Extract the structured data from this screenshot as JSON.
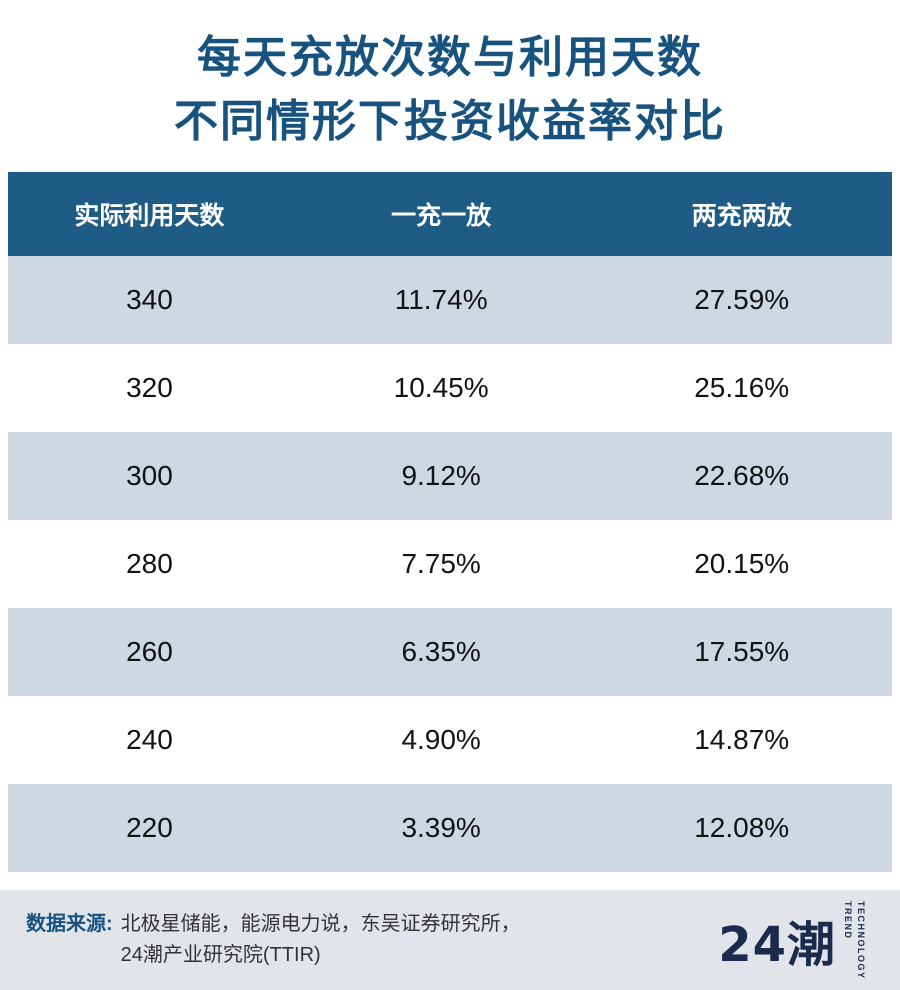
{
  "title": {
    "line1": "每天充放次数与利用天数",
    "line2": "不同情形下投资收益率对比"
  },
  "table": {
    "headers": [
      "实际利用天数",
      "一充一放",
      "两充两放"
    ],
    "rows": [
      [
        "340",
        "11.74%",
        "27.59%"
      ],
      [
        "320",
        "10.45%",
        "25.16%"
      ],
      [
        "300",
        "9.12%",
        "22.68%"
      ],
      [
        "280",
        "7.75%",
        "20.15%"
      ],
      [
        "260",
        "6.35%",
        "17.55%"
      ],
      [
        "240",
        "4.90%",
        "14.87%"
      ],
      [
        "220",
        "3.39%",
        "12.08%"
      ]
    ]
  },
  "footer": {
    "source_label": "数据来源:",
    "source_line1": "北极星储能，能源电力说，东吴证券研究所，",
    "source_line2": "24潮产业研究院(TTIR)",
    "logo_text": "24潮",
    "logo_sub1": "TREND",
    "logo_sub2": "TECHNOLOGY"
  },
  "colors": {
    "title_blue": "#17537E",
    "header_bg": "#1E5C86",
    "row_alt_bg": "#CDD8E2",
    "footer_bg": "#E1E5E9",
    "logo_navy": "#1B2B4D"
  },
  "chart_data": {
    "type": "table",
    "title": "每天充放次数与利用天数 不同情形下投资收益率对比",
    "columns": [
      "实际利用天数",
      "一充一放",
      "两充两放"
    ],
    "units": {
      "一充一放": "%",
      "两充两放": "%"
    },
    "rows": [
      {
        "实际利用天数": 340,
        "一充一放": 11.74,
        "两充两放": 27.59
      },
      {
        "实际利用天数": 320,
        "一充一放": 10.45,
        "两充两放": 25.16
      },
      {
        "实际利用天数": 300,
        "一充一放": 9.12,
        "两充两放": 22.68
      },
      {
        "实际利用天数": 280,
        "一充一放": 7.75,
        "两充两放": 20.15
      },
      {
        "实际利用天数": 260,
        "一充一放": 6.35,
        "两充两放": 17.55
      },
      {
        "实际利用天数": 240,
        "一充一放": 4.9,
        "两充两放": 14.87
      },
      {
        "实际利用天数": 220,
        "一充一放": 3.39,
        "两充两放": 12.08
      }
    ],
    "source": "北极星储能，能源电力说，东吴证券研究所，24潮产业研究院(TTIR)"
  }
}
